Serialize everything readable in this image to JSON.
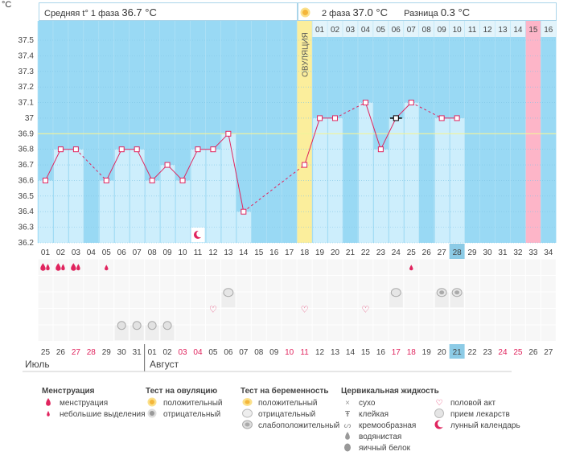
{
  "header": {
    "unit": "°C",
    "phase1_label": "Средняя t° 1 фаза",
    "phase1_value": "36.7 °C",
    "phase2_label": "2 фаза",
    "phase2_value": "37.0 °C",
    "diff_label": "Разница",
    "diff_value": "0.3 °C"
  },
  "colors": {
    "plot_bg": "#99d9f4",
    "bar": "#cdeefc",
    "line": "#e0245e",
    "ovulation": "#fbee9c",
    "period": "#fdb5c8",
    "coverline": "#f3f39a",
    "highlight": "#8ccbe6",
    "weekend": "#e0245e"
  },
  "chart_data": {
    "type": "line",
    "title": "",
    "ylabel": "°C",
    "ylim": [
      36.2,
      37.5
    ],
    "yticks": [
      "36.2",
      "36.3",
      "36.4",
      "36.5",
      "36.6",
      "36.7",
      "36.8",
      "36.9",
      "37",
      "37.1",
      "37.2",
      "37.3",
      "37.4",
      "37.5"
    ],
    "cycle_days": [
      "01",
      "02",
      "03",
      "04",
      "05",
      "06",
      "07",
      "08",
      "09",
      "10",
      "11",
      "12",
      "13",
      "14",
      "15",
      "16",
      "17",
      "18",
      "19",
      "20",
      "21",
      "22",
      "23",
      "24",
      "25",
      "26",
      "27",
      "28",
      "29",
      "30",
      "31",
      "32",
      "33",
      "34"
    ],
    "series": [
      {
        "values": [
          36.6,
          36.8,
          36.8,
          null,
          36.6,
          36.8,
          36.8,
          36.6,
          36.7,
          36.6,
          36.8,
          36.8,
          36.9,
          36.4,
          null,
          null,
          null,
          36.7,
          37.0,
          37.0,
          null,
          37.1,
          36.8,
          37.0,
          37.1,
          null,
          37.0,
          37.0,
          null,
          null,
          null,
          null,
          null,
          null
        ]
      }
    ],
    "coverline": 36.9,
    "ovulation_day": 18,
    "ovulation_label": "ОВУЛЯЦИЯ",
    "luteal_days": [
      "01",
      "02",
      "03",
      "04",
      "05",
      "06",
      "07",
      "08",
      "09",
      "10",
      "11",
      "12",
      "13",
      "14",
      "15",
      "16"
    ],
    "highlighted_day": 28,
    "period_day": 33,
    "dates": [
      "25",
      "26",
      "27",
      "28",
      "29",
      "30",
      "31",
      "01",
      "02",
      "03",
      "04",
      "05",
      "06",
      "07",
      "08",
      "09",
      "10",
      "11",
      "12",
      "13",
      "14",
      "15",
      "16",
      "17",
      "18",
      "19",
      "20",
      "21",
      "22",
      "23",
      "24",
      "25",
      "26",
      "27"
    ],
    "weekend_date_indexes": [
      2,
      3,
      9,
      10,
      16,
      17,
      23,
      24,
      30,
      31
    ],
    "months": [
      "Июль",
      "Август"
    ],
    "moon_day": 11,
    "marker_rows": {
      "menstruation": [
        1,
        2,
        3,
        5,
        25
      ],
      "menstruation_heavy": [
        1,
        2,
        3
      ],
      "pregnancy_test": [
        13,
        24,
        27,
        28
      ],
      "intercourse": [
        12,
        18,
        22
      ],
      "medication": [
        6,
        7,
        8,
        9
      ]
    }
  },
  "legend": {
    "menstruation": {
      "title": "Менструация",
      "items": [
        "менструация",
        "небольшие выделения"
      ]
    },
    "ovulation_test": {
      "title": "Тест на овуляцию",
      "items": [
        "положительный",
        "отрицательный"
      ]
    },
    "pregnancy_test": {
      "title": "Тест на беременность",
      "items": [
        "положительный",
        "отрицательный",
        "слабоположительный"
      ]
    },
    "cervical": {
      "title": "Цервикальная жидкость",
      "items": [
        "сухо",
        "клейкая",
        "кремообразная",
        "водянистая",
        "яичный белок"
      ]
    },
    "other": {
      "items": [
        "половой акт",
        "прием лекарств",
        "лунный календарь"
      ]
    }
  }
}
